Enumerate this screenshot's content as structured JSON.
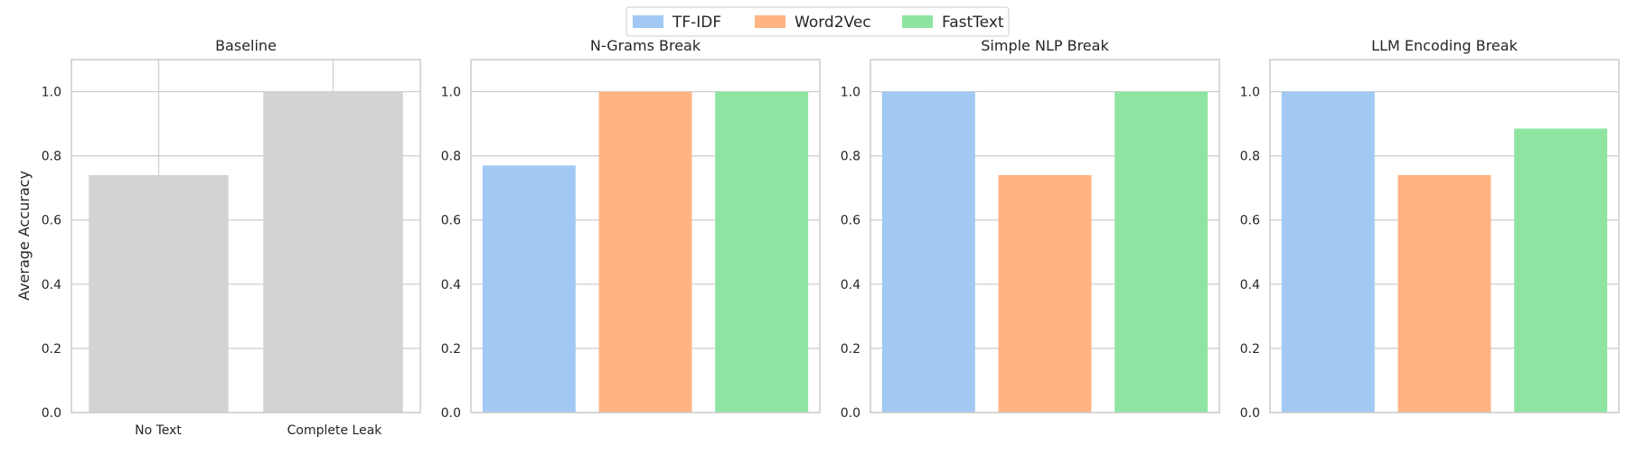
{
  "chart_data": [
    {
      "type": "bar",
      "title": "Baseline",
      "ylabel": "Average Accuracy",
      "ylim": [
        0,
        1.1
      ],
      "yticks": [
        "0.0",
        "0.2",
        "0.4",
        "0.6",
        "0.8",
        "1.0"
      ],
      "categories": [
        "No Text",
        "Complete Leak"
      ],
      "values": [
        0.74,
        1.0
      ],
      "bar_color": "#d3d3d3",
      "grid": true
    },
    {
      "type": "bar",
      "title": "N-Grams Break",
      "ylim": [
        0,
        1.1
      ],
      "yticks": [
        "0.0",
        "0.2",
        "0.4",
        "0.6",
        "0.8",
        "1.0"
      ],
      "series": [
        {
          "name": "TF-IDF",
          "values": [
            0.77
          ]
        },
        {
          "name": "Word2Vec",
          "values": [
            1.0
          ]
        },
        {
          "name": "FastText",
          "values": [
            1.0
          ]
        }
      ],
      "grid": true
    },
    {
      "type": "bar",
      "title": "Simple NLP Break",
      "ylim": [
        0,
        1.1
      ],
      "yticks": [
        "0.0",
        "0.2",
        "0.4",
        "0.6",
        "0.8",
        "1.0"
      ],
      "series": [
        {
          "name": "TF-IDF",
          "values": [
            1.0
          ]
        },
        {
          "name": "Word2Vec",
          "values": [
            0.74
          ]
        },
        {
          "name": "FastText",
          "values": [
            1.0
          ]
        }
      ],
      "grid": true
    },
    {
      "type": "bar",
      "title": "LLM Encoding Break",
      "ylim": [
        0,
        1.1
      ],
      "yticks": [
        "0.0",
        "0.2",
        "0.4",
        "0.6",
        "0.8",
        "1.0"
      ],
      "series": [
        {
          "name": "TF-IDF",
          "values": [
            1.0
          ]
        },
        {
          "name": "Word2Vec",
          "values": [
            0.74
          ]
        },
        {
          "name": "FastText",
          "values": [
            0.885
          ]
        }
      ],
      "grid": true
    }
  ],
  "legend": {
    "placement": "top-center",
    "items": [
      {
        "label": "TF-IDF",
        "color": "#a1c9f4"
      },
      {
        "label": "Word2Vec",
        "color": "#ffb482"
      },
      {
        "label": "FastText",
        "color": "#8de5a1"
      }
    ]
  }
}
